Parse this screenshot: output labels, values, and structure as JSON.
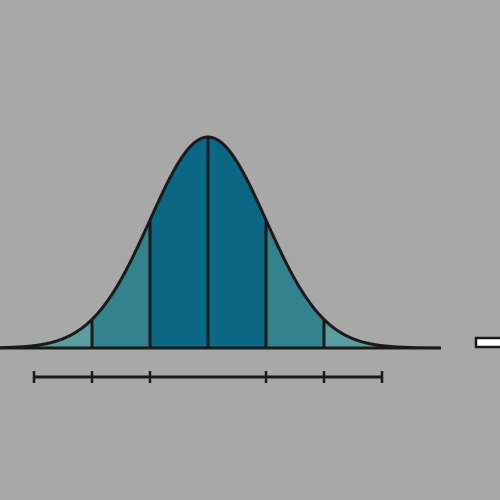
{
  "diagram": {
    "type": "normal-distribution-curve",
    "sigma_bands": [
      {
        "name": "band-left-2sd",
        "from": -3,
        "to": -2,
        "color": "#5b9ea1"
      },
      {
        "name": "band-left-1sd",
        "from": -2,
        "to": -1,
        "color": "#33828d"
      },
      {
        "name": "band-center-left",
        "from": -1,
        "to": 0,
        "color": "#0b6783"
      },
      {
        "name": "band-center-right",
        "from": 0,
        "to": 1,
        "color": "#0b6783"
      },
      {
        "name": "band-right-1sd",
        "from": 1,
        "to": 2,
        "color": "#33828d"
      },
      {
        "name": "band-right-2sd",
        "from": 2,
        "to": 3,
        "color": "#5b9ea1"
      }
    ],
    "band_boundaries": [
      -3,
      -2,
      -1,
      0,
      1,
      2,
      3
    ],
    "scale_ticks": [
      -3,
      -2,
      -1,
      1,
      2,
      3
    ],
    "colors": {
      "background": "#a8a8a8",
      "tail_fill": "#ffffff",
      "outline": "#1a1a1a"
    }
  }
}
